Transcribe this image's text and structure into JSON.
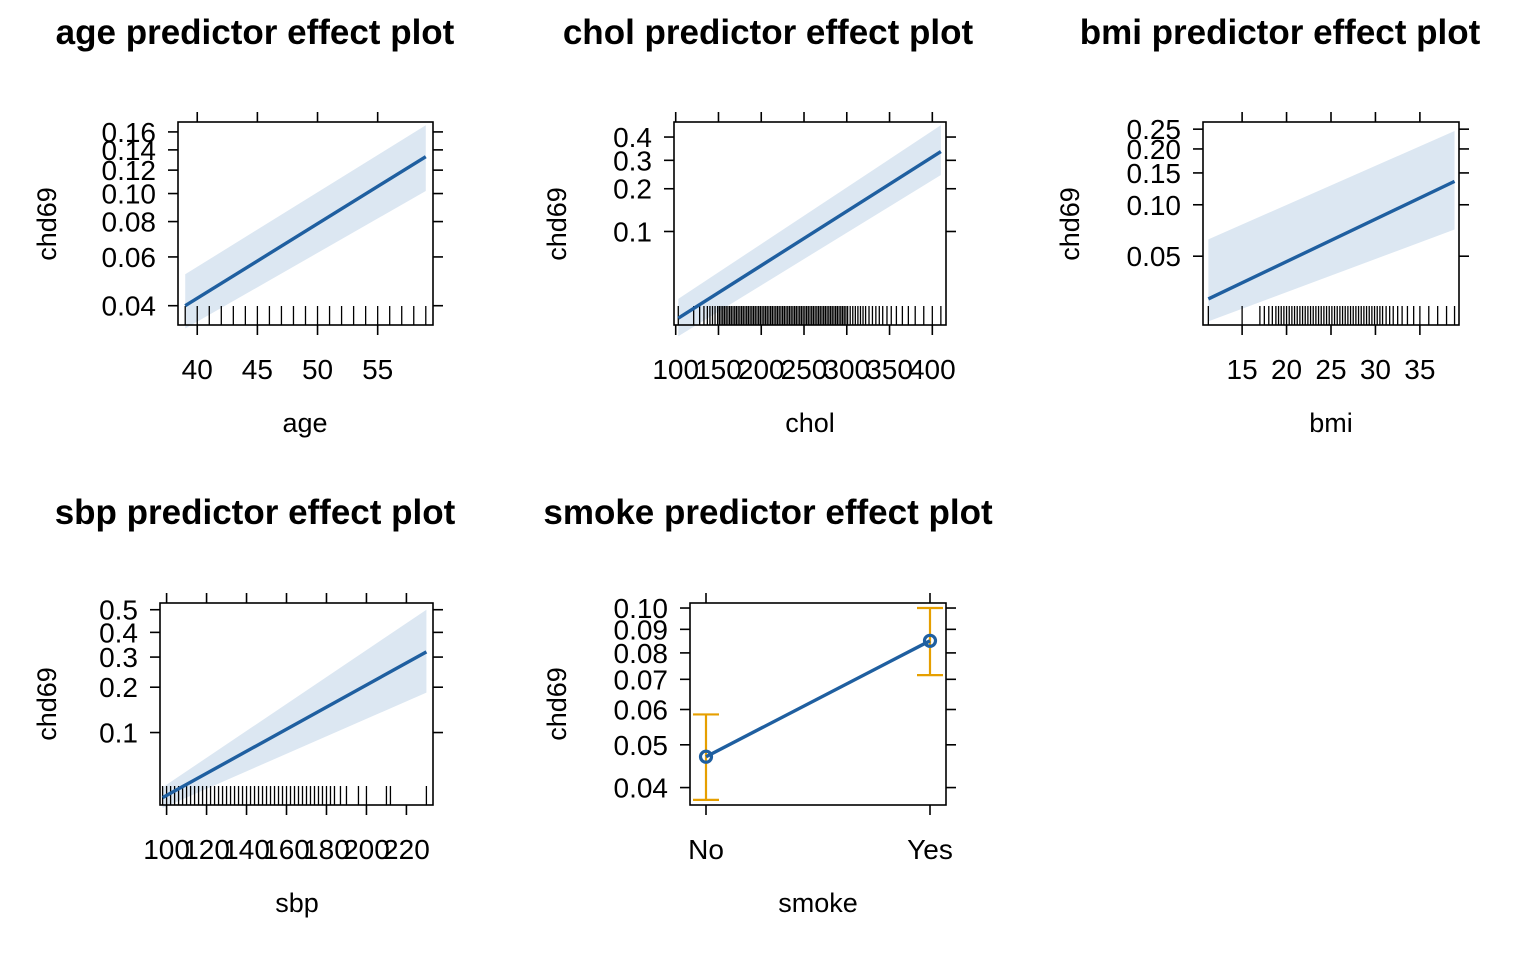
{
  "colors": {
    "line": "#1f5fa0",
    "band": "#dce7f2",
    "errorbar": "#e69f00",
    "axis": "#000000"
  },
  "chart_data": [
    {
      "type": "line",
      "title": "age predictor effect plot",
      "xlabel": "age",
      "ylabel": "chd69",
      "x_ticks": [
        {
          "v": 40,
          "label": "40"
        },
        {
          "v": 45,
          "label": "45"
        },
        {
          "v": 50,
          "label": "50"
        },
        {
          "v": 55,
          "label": "55"
        }
      ],
      "y_ticks": [
        {
          "v": 0.04,
          "label": "0.04"
        },
        {
          "v": 0.06,
          "label": "0.06"
        },
        {
          "v": 0.08,
          "label": "0.08"
        },
        {
          "v": 0.1,
          "label": "0.10"
        },
        {
          "v": 0.12,
          "label": "0.12"
        },
        {
          "v": 0.14,
          "label": "0.14"
        },
        {
          "v": 0.16,
          "label": "0.16"
        }
      ],
      "xlim": [
        38.4,
        59.6
      ],
      "ylim": [
        0.034,
        0.172
      ],
      "y_scale": "logit",
      "x": [
        39,
        59
      ],
      "y": [
        0.04,
        0.133
      ],
      "lower": [
        0.033,
        0.102
      ],
      "upper": [
        0.052,
        0.168
      ],
      "rug": [
        39,
        40,
        41,
        42,
        43,
        44,
        45,
        46,
        47,
        48,
        49,
        50,
        51,
        52,
        53,
        54,
        55,
        56,
        57,
        58,
        59
      ]
    },
    {
      "type": "line",
      "title": "chol predictor effect plot",
      "xlabel": "chol",
      "ylabel": "chd69",
      "x_ticks": [
        {
          "v": 100,
          "label": "100"
        },
        {
          "v": 150,
          "label": "150"
        },
        {
          "v": 200,
          "label": "200"
        },
        {
          "v": 250,
          "label": "250"
        },
        {
          "v": 300,
          "label": "300"
        },
        {
          "v": 350,
          "label": "350"
        },
        {
          "v": 400,
          "label": "400"
        }
      ],
      "y_ticks": [
        {
          "v": 0.1,
          "label": "0.1"
        },
        {
          "v": 0.2,
          "label": "0.2"
        },
        {
          "v": 0.3,
          "label": "0.3"
        },
        {
          "v": 0.4,
          "label": "0.4"
        }
      ],
      "xlim": [
        98,
        416
      ],
      "ylim": [
        0.0185,
        0.47
      ],
      "y_scale": "logit",
      "x": [
        103,
        410
      ],
      "y": [
        0.021,
        0.336
      ],
      "lower": [
        0.015,
        0.245
      ],
      "upper": [
        0.03,
        0.455
      ],
      "rug": [
        103,
        121,
        128,
        133,
        137,
        140,
        143,
        146,
        149,
        151,
        153,
        155,
        157,
        159,
        161,
        163,
        165,
        167,
        169,
        171,
        173,
        175,
        177,
        179,
        181,
        183,
        185,
        187,
        189,
        191,
        193,
        195,
        197,
        199,
        201,
        203,
        205,
        207,
        209,
        211,
        213,
        215,
        217,
        219,
        221,
        223,
        225,
        227,
        229,
        231,
        233,
        235,
        237,
        239,
        241,
        243,
        245,
        247,
        249,
        251,
        253,
        255,
        257,
        259,
        261,
        263,
        265,
        267,
        269,
        271,
        273,
        275,
        277,
        279,
        281,
        283,
        285,
        287,
        289,
        291,
        293,
        295,
        297,
        299,
        301,
        304,
        307,
        310,
        313,
        316,
        319,
        322,
        326,
        330,
        334,
        338,
        342,
        347,
        352,
        358,
        365,
        372,
        380,
        390,
        400,
        410
      ]
    },
    {
      "type": "line",
      "title": "bmi predictor effect plot",
      "xlabel": "bmi",
      "ylabel": "chd69",
      "x_ticks": [
        {
          "v": 15,
          "label": "15"
        },
        {
          "v": 20,
          "label": "20"
        },
        {
          "v": 25,
          "label": "25"
        },
        {
          "v": 30,
          "label": "30"
        },
        {
          "v": 35,
          "label": "35"
        }
      ],
      "y_ticks": [
        {
          "v": 0.05,
          "label": "0.05"
        },
        {
          "v": 0.1,
          "label": "0.10"
        },
        {
          "v": 0.15,
          "label": "0.15"
        },
        {
          "v": 0.2,
          "label": "0.20"
        },
        {
          "v": 0.25,
          "label": "0.25"
        }
      ],
      "xlim": [
        10.6,
        39.4
      ],
      "ylim": [
        0.019,
        0.27
      ],
      "y_scale": "logit",
      "x": [
        11.2,
        38.9
      ],
      "y": [
        0.0275,
        0.135
      ],
      "lower": [
        0.02,
        0.072
      ],
      "upper": [
        0.063,
        0.245
      ],
      "rug": [
        11.2,
        15.0,
        17.0,
        17.5,
        18.0,
        18.4,
        18.8,
        19.1,
        19.4,
        19.7,
        20.0,
        20.3,
        20.6,
        20.9,
        21.2,
        21.5,
        21.8,
        22.1,
        22.4,
        22.7,
        23.0,
        23.3,
        23.6,
        23.9,
        24.2,
        24.5,
        24.8,
        25.1,
        25.4,
        25.7,
        26.0,
        26.3,
        26.6,
        26.9,
        27.2,
        27.5,
        27.8,
        28.1,
        28.4,
        28.7,
        29.0,
        29.3,
        29.6,
        29.9,
        30.2,
        30.5,
        30.8,
        31.2,
        31.6,
        32.0,
        32.5,
        33.0,
        33.6,
        34.3,
        35.0,
        36.0,
        37.0,
        38.0,
        38.9
      ]
    },
    {
      "type": "line",
      "title": "sbp predictor effect plot",
      "xlabel": "sbp",
      "ylabel": "chd69",
      "x_ticks": [
        {
          "v": 100,
          "label": "100"
        },
        {
          "v": 120,
          "label": "120"
        },
        {
          "v": 140,
          "label": "140"
        },
        {
          "v": 160,
          "label": "160"
        },
        {
          "v": 180,
          "label": "180"
        },
        {
          "v": 200,
          "label": "200"
        },
        {
          "v": 220,
          "label": "220"
        }
      ],
      "y_ticks": [
        {
          "v": 0.1,
          "label": "0.1"
        },
        {
          "v": 0.2,
          "label": "0.2"
        },
        {
          "v": 0.3,
          "label": "0.3"
        },
        {
          "v": 0.4,
          "label": "0.4"
        },
        {
          "v": 0.5,
          "label": "0.5"
        }
      ],
      "xlim": [
        96.7,
        233.3
      ],
      "ylim": [
        0.0295,
        0.53
      ],
      "y_scale": "logit",
      "x": [
        98,
        230
      ],
      "y": [
        0.0335,
        0.32
      ],
      "lower": [
        0.028,
        0.185
      ],
      "upper": [
        0.04,
        0.5
      ],
      "rug": [
        98,
        100,
        102,
        104,
        106,
        108,
        110,
        112,
        114,
        116,
        118,
        120,
        122,
        124,
        126,
        128,
        130,
        132,
        134,
        136,
        138,
        140,
        142,
        144,
        146,
        148,
        150,
        152,
        154,
        156,
        158,
        160,
        162,
        164,
        166,
        168,
        170,
        172,
        174,
        176,
        178,
        180,
        182,
        184,
        187,
        190,
        196,
        200,
        210,
        212,
        230
      ]
    },
    {
      "type": "line",
      "title": "smoke predictor effect plot",
      "xlabel": "smoke",
      "ylabel": "chd69",
      "categories": [
        "No",
        "Yes"
      ],
      "y_ticks": [
        {
          "v": 0.04,
          "label": "0.04"
        },
        {
          "v": 0.05,
          "label": "0.05"
        },
        {
          "v": 0.06,
          "label": "0.06"
        },
        {
          "v": 0.07,
          "label": "0.07"
        },
        {
          "v": 0.08,
          "label": "0.08"
        },
        {
          "v": 0.09,
          "label": "0.09"
        },
        {
          "v": 0.1,
          "label": "0.10"
        }
      ],
      "ylim": [
        0.0365,
        0.1025
      ],
      "y_scale": "logit",
      "values": [
        0.047,
        0.085
      ],
      "lower": [
        0.0375,
        0.0715
      ],
      "upper": [
        0.0585,
        0.1
      ]
    }
  ]
}
